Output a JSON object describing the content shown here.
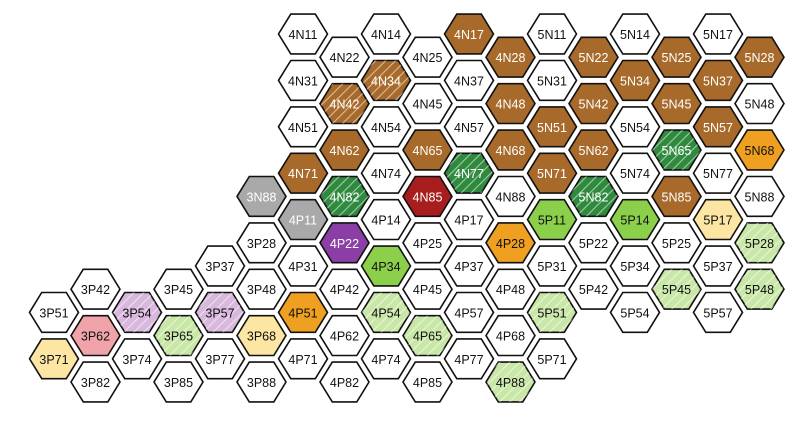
{
  "map": {
    "palette": {
      "white": "#ffffff",
      "brown": "#a86a2a",
      "darkgreen": "#2f8a3e",
      "red": "#a81e1e",
      "gray": "#a9a9a9",
      "purple": "#8b3fa6",
      "orange": "#f0a020",
      "lightgreen": "#8ccf4a",
      "palegreen": "#c9e8a8",
      "lavender": "#d9b8de",
      "pink": "#f0a4aa",
      "cream": "#fde5a4"
    },
    "hatch_color": "#ffffff",
    "outline_color": "#111111",
    "text_color_light": "#111111",
    "text_color_dark": "#ffffff",
    "hexes": [
      {
        "label": "4N11",
        "col": 7,
        "row": 0,
        "color": "white"
      },
      {
        "label": "4N22",
        "col": 8,
        "row": 1,
        "color": "white"
      },
      {
        "label": "4N31",
        "col": 7,
        "row": 2,
        "color": "white"
      },
      {
        "label": "4N42",
        "col": 8,
        "row": 3,
        "color": "brown",
        "hatched": true
      },
      {
        "label": "4N51",
        "col": 7,
        "row": 4,
        "color": "white"
      },
      {
        "label": "4N62",
        "col": 8,
        "row": 5,
        "color": "brown"
      },
      {
        "label": "4N71",
        "col": 7,
        "row": 6,
        "color": "brown"
      },
      {
        "label": "4N82",
        "col": 8,
        "row": 7,
        "color": "darkgreen",
        "hatched": true
      },
      {
        "label": "3N88",
        "col": 6,
        "row": 7,
        "color": "gray"
      },
      {
        "label": "4P11",
        "col": 7,
        "row": 8,
        "color": "gray"
      },
      {
        "label": "4P22",
        "col": 8,
        "row": 9,
        "color": "purple"
      },
      {
        "label": "3P28",
        "col": 6,
        "row": 9,
        "color": "white"
      },
      {
        "label": "4P31",
        "col": 7,
        "row": 10,
        "color": "white"
      },
      {
        "label": "3P37",
        "col": 5,
        "row": 10,
        "color": "white"
      },
      {
        "label": "4P42",
        "col": 8,
        "row": 11,
        "color": "white"
      },
      {
        "label": "3P48",
        "col": 6,
        "row": 11,
        "color": "white"
      },
      {
        "label": "4P51",
        "col": 7,
        "row": 12,
        "color": "orange"
      },
      {
        "label": "3P57",
        "col": 5,
        "row": 12,
        "color": "lavender",
        "hatched": true
      },
      {
        "label": "4P62",
        "col": 8,
        "row": 13,
        "color": "white"
      },
      {
        "label": "3P68",
        "col": 6,
        "row": 13,
        "color": "cream"
      },
      {
        "label": "4P71",
        "col": 7,
        "row": 14,
        "color": "white"
      },
      {
        "label": "3P77",
        "col": 5,
        "row": 14,
        "color": "white"
      },
      {
        "label": "4P82",
        "col": 8,
        "row": 15,
        "color": "white"
      },
      {
        "label": "3P88",
        "col": 6,
        "row": 15,
        "color": "white"
      },
      {
        "label": "3P42",
        "col": 2,
        "row": 11,
        "color": "white"
      },
      {
        "label": "3P45",
        "col": 4,
        "row": 11,
        "color": "white"
      },
      {
        "label": "3P51",
        "col": 1,
        "row": 12,
        "color": "white"
      },
      {
        "label": "3P54",
        "col": 3,
        "row": 12,
        "color": "lavender",
        "hatched": true
      },
      {
        "label": "3P62",
        "col": 2,
        "row": 13,
        "color": "pink"
      },
      {
        "label": "3P65",
        "col": 4,
        "row": 13,
        "color": "palegreen",
        "hatched": true
      },
      {
        "label": "3P71",
        "col": 1,
        "row": 14,
        "color": "cream"
      },
      {
        "label": "3P74",
        "col": 3,
        "row": 14,
        "color": "white"
      },
      {
        "label": "3P82",
        "col": 2,
        "row": 15,
        "color": "white"
      },
      {
        "label": "3P85",
        "col": 4,
        "row": 15,
        "color": "white"
      },
      {
        "label": "4N14",
        "col": 9,
        "row": 0,
        "color": "white"
      },
      {
        "label": "4N25",
        "col": 10,
        "row": 1,
        "color": "white"
      },
      {
        "label": "4N34",
        "col": 9,
        "row": 2,
        "color": "brown",
        "hatched": true
      },
      {
        "label": "4N45",
        "col": 10,
        "row": 3,
        "color": "white"
      },
      {
        "label": "4N54",
        "col": 9,
        "row": 4,
        "color": "white"
      },
      {
        "label": "4N65",
        "col": 10,
        "row": 5,
        "color": "brown"
      },
      {
        "label": "4N74",
        "col": 9,
        "row": 6,
        "color": "white"
      },
      {
        "label": "4N85",
        "col": 10,
        "row": 7,
        "color": "red"
      },
      {
        "label": "4P14",
        "col": 9,
        "row": 8,
        "color": "white"
      },
      {
        "label": "4P25",
        "col": 10,
        "row": 9,
        "color": "white"
      },
      {
        "label": "4P34",
        "col": 9,
        "row": 10,
        "color": "lightgreen"
      },
      {
        "label": "4P45",
        "col": 10,
        "row": 11,
        "color": "white"
      },
      {
        "label": "4P54",
        "col": 9,
        "row": 12,
        "color": "palegreen",
        "hatched": true
      },
      {
        "label": "4P65",
        "col": 10,
        "row": 13,
        "color": "palegreen",
        "hatched": true
      },
      {
        "label": "4P74",
        "col": 9,
        "row": 14,
        "color": "white"
      },
      {
        "label": "4P85",
        "col": 10,
        "row": 15,
        "color": "white"
      },
      {
        "label": "4N17",
        "col": 11,
        "row": 0,
        "color": "brown"
      },
      {
        "label": "4N28",
        "col": 12,
        "row": 1,
        "color": "brown"
      },
      {
        "label": "4N37",
        "col": 11,
        "row": 2,
        "color": "white"
      },
      {
        "label": "4N48",
        "col": 12,
        "row": 3,
        "color": "brown"
      },
      {
        "label": "4N57",
        "col": 11,
        "row": 4,
        "color": "white"
      },
      {
        "label": "4N68",
        "col": 12,
        "row": 5,
        "color": "brown"
      },
      {
        "label": "4N77",
        "col": 11,
        "row": 6,
        "color": "darkgreen",
        "hatched": true
      },
      {
        "label": "4N88",
        "col": 12,
        "row": 7,
        "color": "white"
      },
      {
        "label": "4P17",
        "col": 11,
        "row": 8,
        "color": "white"
      },
      {
        "label": "4P28",
        "col": 12,
        "row": 9,
        "color": "orange"
      },
      {
        "label": "4P37",
        "col": 11,
        "row": 10,
        "color": "white"
      },
      {
        "label": "4P48",
        "col": 12,
        "row": 11,
        "color": "white"
      },
      {
        "label": "4P57",
        "col": 11,
        "row": 12,
        "color": "white"
      },
      {
        "label": "4P68",
        "col": 12,
        "row": 13,
        "color": "white"
      },
      {
        "label": "4P77",
        "col": 11,
        "row": 14,
        "color": "white"
      },
      {
        "label": "4P88",
        "col": 12,
        "row": 15,
        "color": "palegreen",
        "hatched": true
      },
      {
        "label": "5N11",
        "col": 13,
        "row": 0,
        "color": "white"
      },
      {
        "label": "5N22",
        "col": 14,
        "row": 1,
        "color": "brown"
      },
      {
        "label": "5N31",
        "col": 13,
        "row": 2,
        "color": "white"
      },
      {
        "label": "5N42",
        "col": 14,
        "row": 3,
        "color": "brown"
      },
      {
        "label": "5N51",
        "col": 13,
        "row": 4,
        "color": "brown"
      },
      {
        "label": "5N62",
        "col": 14,
        "row": 5,
        "color": "brown"
      },
      {
        "label": "5N71",
        "col": 13,
        "row": 6,
        "color": "brown"
      },
      {
        "label": "5N82",
        "col": 14,
        "row": 7,
        "color": "darkgreen",
        "hatched": true
      },
      {
        "label": "5P11",
        "col": 13,
        "row": 8,
        "color": "lightgreen"
      },
      {
        "label": "5P22",
        "col": 14,
        "row": 9,
        "color": "white"
      },
      {
        "label": "5P31",
        "col": 13,
        "row": 10,
        "color": "white"
      },
      {
        "label": "5P42",
        "col": 14,
        "row": 11,
        "color": "white"
      },
      {
        "label": "5P51",
        "col": 13,
        "row": 12,
        "color": "palegreen",
        "hatched": true
      },
      {
        "label": "5P71",
        "col": 13,
        "row": 14,
        "color": "white"
      },
      {
        "label": "5N14",
        "col": 15,
        "row": 0,
        "color": "white"
      },
      {
        "label": "5N25",
        "col": 16,
        "row": 1,
        "color": "brown"
      },
      {
        "label": "5N34",
        "col": 15,
        "row": 2,
        "color": "brown"
      },
      {
        "label": "5N45",
        "col": 16,
        "row": 3,
        "color": "brown"
      },
      {
        "label": "5N54",
        "col": 15,
        "row": 4,
        "color": "white"
      },
      {
        "label": "5N65",
        "col": 16,
        "row": 5,
        "color": "darkgreen",
        "hatched": true
      },
      {
        "label": "5N74",
        "col": 15,
        "row": 6,
        "color": "white"
      },
      {
        "label": "5N85",
        "col": 16,
        "row": 7,
        "color": "brown"
      },
      {
        "label": "5P14",
        "col": 15,
        "row": 8,
        "color": "lightgreen"
      },
      {
        "label": "5P25",
        "col": 16,
        "row": 9,
        "color": "white"
      },
      {
        "label": "5P34",
        "col": 15,
        "row": 10,
        "color": "white"
      },
      {
        "label": "5P45",
        "col": 16,
        "row": 11,
        "color": "palegreen",
        "hatched": true
      },
      {
        "label": "5P54",
        "col": 15,
        "row": 12,
        "color": "white"
      },
      {
        "label": "5N17",
        "col": 17,
        "row": 0,
        "color": "white"
      },
      {
        "label": "5N28",
        "col": 18,
        "row": 1,
        "color": "brown"
      },
      {
        "label": "5N37",
        "col": 17,
        "row": 2,
        "color": "brown"
      },
      {
        "label": "5N48",
        "col": 18,
        "row": 3,
        "color": "white"
      },
      {
        "label": "5N57",
        "col": 17,
        "row": 4,
        "color": "brown"
      },
      {
        "label": "5N68",
        "col": 18,
        "row": 5,
        "color": "orange"
      },
      {
        "label": "5N77",
        "col": 17,
        "row": 6,
        "color": "white"
      },
      {
        "label": "5N88",
        "col": 18,
        "row": 7,
        "color": "white"
      },
      {
        "label": "5P17",
        "col": 17,
        "row": 8,
        "color": "cream"
      },
      {
        "label": "5P28",
        "col": 18,
        "row": 9,
        "color": "palegreen",
        "hatched": true
      },
      {
        "label": "5P37",
        "col": 17,
        "row": 10,
        "color": "white"
      },
      {
        "label": "5P48",
        "col": 18,
        "row": 11,
        "color": "palegreen",
        "hatched": true
      },
      {
        "label": "5P57",
        "col": 17,
        "row": 12,
        "color": "white"
      }
    ]
  }
}
